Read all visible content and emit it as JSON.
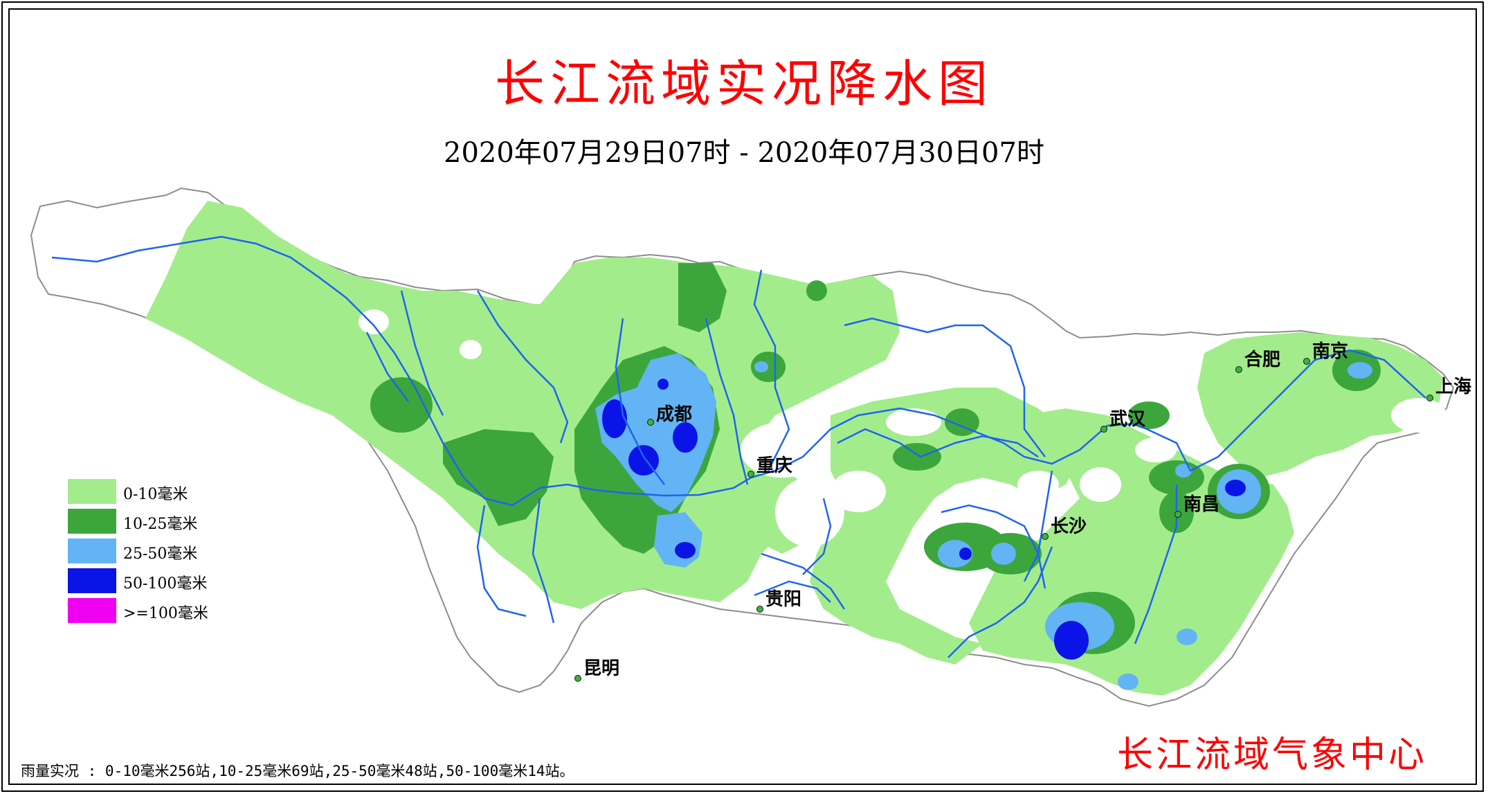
{
  "title": "长江流域实况降水图",
  "period": "2020年07月29日07时 - 2020年07月30日07时",
  "legend": [
    {
      "label": "0-10毫米",
      "color": "#a3ec8c"
    },
    {
      "label": "10-25毫米",
      "color": "#3ca63c"
    },
    {
      "label": "25-50毫米",
      "color": "#62b4f4"
    },
    {
      "label": "50-100毫米",
      "color": "#0a14e6"
    },
    {
      "label": ">=100毫米",
      "color": "#f000f0"
    }
  ],
  "cities": [
    {
      "name": "成都"
    },
    {
      "name": "重庆"
    },
    {
      "name": "贵阳"
    },
    {
      "name": "昆明"
    },
    {
      "name": "长沙"
    },
    {
      "name": "武汉"
    },
    {
      "name": "南昌"
    },
    {
      "name": "合肥"
    },
    {
      "name": "南京"
    },
    {
      "name": "上海"
    }
  ],
  "summary": "雨量实况 : 0-10毫米256站,10-25毫米69站,25-50毫米48站,50-100毫米14站。",
  "agency": "长江流域气象中心",
  "colors": {
    "title": "#ff0000",
    "river": "#1e64f0",
    "basin_fill": "#ffffff",
    "basin_border": "#8c8c8c",
    "city_marker": "#3cb43c"
  }
}
